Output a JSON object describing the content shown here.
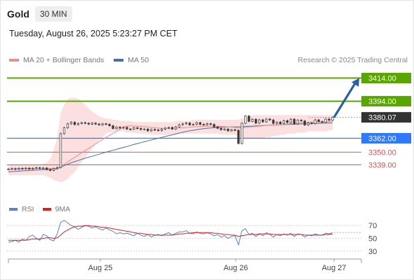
{
  "header": {
    "symbol": "Gold",
    "timeframe": "30 MIN"
  },
  "timestamp": "Tuesday, August 26, 2025 5:23:27 PM CET",
  "legend": {
    "ma20_label": "MA 20 + Bollinger Bands",
    "ma50_label": "MA 50",
    "copyright": "Research © 2025 Trading Central",
    "ma20_color": "#f08c8c",
    "ma50_color": "#4a6fa5",
    "bands_color": "#fbdada"
  },
  "rsi_legend": {
    "rsi_label": "RSI",
    "ma_label": "9MA",
    "rsi_color": "#5b7fd6",
    "ma_color": "#e02020"
  },
  "colors": {
    "resistance": "#5aa600",
    "pivot": "#2f78ff",
    "support": "#d9534f",
    "current": "#333333",
    "arrow": "#2a5fa8",
    "candle_up": "#3a3a3a",
    "candle_down": "#3a3a3a"
  },
  "chart_data": [
    {
      "type": "candlestick",
      "title": "Gold",
      "timeframe": "30 MIN",
      "x_ticks": [
        "Aug 25",
        "Aug 26",
        "Aug 27"
      ],
      "ylim": [
        3323,
        3424
      ],
      "price_levels": [
        {
          "label": "3414.00",
          "value": 3414.0,
          "kind": "resistance"
        },
        {
          "label": "3394.00",
          "value": 3394.0,
          "kind": "resistance"
        },
        {
          "label": "3380.07",
          "value": 3380.07,
          "kind": "current"
        },
        {
          "label": "3362.00",
          "value": 3362.0,
          "kind": "pivot"
        },
        {
          "label": "3350.00",
          "value": 3350.0,
          "kind": "support"
        },
        {
          "label": "3339.00",
          "value": 3339.0,
          "kind": "support"
        }
      ],
      "forecast_arrow": {
        "from": 3380,
        "to": 3414
      },
      "closes": [
        3335.5,
        3335.8,
        3335.2,
        3336.0,
        3335.6,
        3336.2,
        3335.4,
        3336.1,
        3336.5,
        3335.9,
        3336.3,
        3335.0,
        3334.2,
        3335.8,
        3336.8,
        3366.0,
        3371.0,
        3374.5,
        3375.8,
        3373.8,
        3374.8,
        3375.5,
        3375.0,
        3374.2,
        3375.1,
        3374.3,
        3373.6,
        3374.5,
        3374.1,
        3372.8,
        3370.4,
        3371.6,
        3370.8,
        3371.4,
        3370.0,
        3369.8,
        3371.0,
        3370.4,
        3369.6,
        3370.0,
        3368.4,
        3369.6,
        3369.2,
        3368.6,
        3369.8,
        3370.8,
        3371.3,
        3370.0,
        3371.8,
        3373.7,
        3374.5,
        3375.2,
        3373.6,
        3374.0,
        3375.5,
        3374.0,
        3373.7,
        3374.6,
        3374.0,
        3371.8,
        3370.6,
        3369.4,
        3370.0,
        3368.4,
        3369.4,
        3368.9,
        3357.5,
        3375.0,
        3381.2,
        3376.6,
        3378.4,
        3375.1,
        3377.9,
        3376.2,
        3378.6,
        3377.8,
        3374.8,
        3376.0,
        3374.6,
        3377.2,
        3375.6,
        3378.5,
        3374.5,
        3377.6,
        3377.0,
        3373.5,
        3375.2,
        3374.6,
        3377.9,
        3376.4,
        3375.8,
        3378.6,
        3377.6,
        3380.0
      ],
      "opens": [
        3335.2,
        3335.5,
        3335.8,
        3335.2,
        3336.0,
        3335.6,
        3336.2,
        3335.4,
        3336.1,
        3336.5,
        3335.9,
        3336.3,
        3335.0,
        3334.2,
        3335.8,
        3336.8,
        3366.0,
        3371.0,
        3374.5,
        3375.8,
        3373.8,
        3374.8,
        3375.5,
        3375.0,
        3374.2,
        3375.1,
        3374.3,
        3373.6,
        3374.5,
        3374.1,
        3372.8,
        3370.4,
        3371.6,
        3370.8,
        3371.4,
        3370.0,
        3369.8,
        3371.0,
        3370.4,
        3369.6,
        3370.0,
        3368.4,
        3369.6,
        3369.2,
        3368.6,
        3369.8,
        3370.8,
        3371.3,
        3370.0,
        3371.8,
        3373.7,
        3374.5,
        3375.2,
        3373.6,
        3374.0,
        3375.5,
        3374.0,
        3373.7,
        3374.6,
        3374.0,
        3371.8,
        3370.6,
        3369.4,
        3370.0,
        3368.4,
        3369.4,
        3368.9,
        3357.5,
        3375.0,
        3381.2,
        3376.6,
        3378.4,
        3375.1,
        3377.9,
        3376.2,
        3378.6,
        3377.8,
        3374.8,
        3376.0,
        3374.6,
        3377.2,
        3375.6,
        3378.5,
        3374.5,
        3377.6,
        3377.0,
        3373.5,
        3375.2,
        3374.6,
        3377.9,
        3376.4,
        3375.8,
        3378.6,
        3377.6
      ],
      "ma20": [
        3335.0,
        3335.2,
        3335.4,
        3335.5,
        3335.6,
        3335.7,
        3335.8,
        3335.8,
        3335.9,
        3336.0,
        3336.0,
        3336.0,
        3335.9,
        3336.0,
        3336.2,
        3337.8,
        3339.6,
        3341.6,
        3343.6,
        3345.5,
        3347.4,
        3349.4,
        3351.3,
        3353.2,
        3355.1,
        3357.1,
        3359.0,
        3360.9,
        3362.8,
        3364.5,
        3366.2,
        3368.0,
        3369.9,
        3371.8,
        3372.6,
        3372.8,
        3372.6,
        3372.4,
        3372.2,
        3372.0,
        3371.7,
        3371.4,
        3371.1,
        3370.8,
        3370.7,
        3370.6,
        3370.6,
        3370.6,
        3370.7,
        3370.9,
        3371.1,
        3371.4,
        3371.6,
        3371.8,
        3372.0,
        3372.2,
        3372.4,
        3372.5,
        3372.6,
        3372.6,
        3372.4,
        3372.2,
        3372.0,
        3371.8,
        3371.6,
        3371.4,
        3370.9,
        3371.0,
        3371.4,
        3371.7,
        3372.0,
        3372.2,
        3372.5,
        3372.7,
        3373.0,
        3373.2,
        3373.3,
        3373.5,
        3373.6,
        3373.9,
        3374.2,
        3374.5,
        3374.7,
        3375.0,
        3375.4,
        3375.6,
        3375.8,
        3376.0,
        3376.1,
        3376.2,
        3376.2,
        3376.3,
        3376.4,
        3376.6
      ],
      "ma50": [
        3333.0,
        3333.2,
        3333.4,
        3333.6,
        3333.8,
        3334.0,
        3334.1,
        3334.3,
        3334.5,
        3334.7,
        3334.9,
        3335.0,
        3335.1,
        3335.3,
        3335.5,
        3337.0,
        3338.4,
        3339.6,
        3340.8,
        3341.8,
        3342.8,
        3343.8,
        3344.8,
        3345.6,
        3346.4,
        3347.3,
        3348.2,
        3349.1,
        3350.0,
        3350.8,
        3351.6,
        3352.4,
        3353.3,
        3354.1,
        3354.9,
        3355.8,
        3356.6,
        3357.4,
        3358.2,
        3359.0,
        3359.8,
        3360.5,
        3361.3,
        3362.0,
        3362.8,
        3363.5,
        3364.3,
        3365.0,
        3365.8,
        3366.5,
        3367.2,
        3367.9,
        3368.4,
        3368.9,
        3369.4,
        3369.9,
        3370.3,
        3370.6,
        3370.9,
        3371.1,
        3371.3,
        3371.5,
        3371.6,
        3371.7,
        3371.8,
        3371.8,
        3371.9,
        3372.0,
        3372.2,
        3372.4,
        3372.5,
        3372.7,
        3372.8,
        3373.0,
        3373.1,
        3373.3,
        3373.4,
        3373.5,
        3373.6,
        3373.8,
        3373.9,
        3374.0,
        3374.1,
        3374.3,
        3374.4,
        3374.5,
        3374.6,
        3374.7,
        3374.8,
        3374.9,
        3375.0,
        3375.1,
        3375.2,
        3375.3
      ],
      "bb_upper": [
        3339,
        3339,
        3339,
        3339,
        3339,
        3339,
        3339,
        3339,
        3339,
        3339,
        3340,
        3341,
        3344,
        3352,
        3362,
        3384,
        3391,
        3396,
        3397,
        3397,
        3396,
        3394,
        3391,
        3388,
        3385,
        3383,
        3381,
        3380,
        3379,
        3379,
        3378,
        3378,
        3377,
        3377,
        3377,
        3377,
        3376,
        3376,
        3376,
        3376,
        3376,
        3376,
        3376,
        3376,
        3376,
        3376,
        3376,
        3376,
        3377,
        3377,
        3377,
        3377,
        3377,
        3378,
        3378,
        3378,
        3378,
        3378,
        3378,
        3378,
        3378,
        3378,
        3378,
        3378,
        3378,
        3378,
        3378,
        3379,
        3380,
        3381,
        3382,
        3382,
        3382,
        3382,
        3382,
        3382,
        3382,
        3382,
        3382,
        3382,
        3382,
        3382,
        3382,
        3382,
        3382,
        3382,
        3382,
        3382,
        3382,
        3382,
        3382,
        3382,
        3382,
        3382
      ],
      "bb_lower": [
        3330,
        3330,
        3330,
        3330,
        3330,
        3330,
        3330,
        3330,
        3330,
        3330,
        3330,
        3329,
        3328,
        3326,
        3325,
        3324,
        3325,
        3327,
        3330,
        3333,
        3337,
        3341,
        3345,
        3349,
        3353,
        3357,
        3360,
        3363,
        3366,
        3367,
        3368,
        3368,
        3368,
        3368,
        3367,
        3367,
        3367,
        3366,
        3366,
        3366,
        3366,
        3365,
        3365,
        3365,
        3365,
        3365,
        3365,
        3365,
        3365,
        3366,
        3366,
        3366,
        3366,
        3366,
        3366,
        3366,
        3366,
        3366,
        3366,
        3366,
        3366,
        3365,
        3365,
        3365,
        3365,
        3365,
        3363,
        3362,
        3362,
        3362,
        3362,
        3362,
        3362,
        3362,
        3363,
        3363,
        3364,
        3364,
        3365,
        3365,
        3366,
        3366,
        3366,
        3367,
        3367,
        3367,
        3368,
        3368,
        3368,
        3368,
        3368,
        3368,
        3369,
        3369
      ]
    },
    {
      "type": "line",
      "title": "RSI",
      "ylim": [
        20,
        80
      ],
      "y_ticks": [
        70,
        50,
        30
      ],
      "series": [
        {
          "name": "RSI",
          "values": [
            44,
            45,
            47,
            44,
            49,
            47,
            53,
            55,
            50,
            47,
            56,
            54,
            48,
            46,
            57,
            75,
            78,
            74,
            70,
            68,
            64,
            67,
            70,
            69,
            66,
            68,
            65,
            63,
            66,
            63,
            61,
            57,
            59,
            57,
            58,
            56,
            54,
            58,
            55,
            53,
            56,
            52,
            55,
            56,
            54,
            57,
            59,
            55,
            58,
            60,
            60,
            62,
            58,
            57,
            60,
            58,
            57,
            59,
            57,
            54,
            56,
            52,
            54,
            50,
            53,
            54,
            40,
            62,
            65,
            56,
            58,
            53,
            57,
            54,
            59,
            56,
            52,
            56,
            54,
            57,
            55,
            58,
            53,
            57,
            56,
            52,
            55,
            54,
            57,
            55,
            55,
            58,
            57,
            59
          ]
        },
        {
          "name": "9MA",
          "values": [
            47,
            47,
            47,
            47,
            47,
            47,
            48,
            49,
            49,
            49,
            50,
            51,
            51,
            50,
            51,
            55,
            60,
            63,
            66,
            68,
            69,
            69,
            70,
            70,
            69,
            69,
            68,
            67,
            67,
            66,
            65,
            64,
            63,
            62,
            61,
            60,
            59,
            58,
            58,
            57,
            56,
            56,
            55,
            55,
            55,
            55,
            55,
            55,
            56,
            57,
            57,
            58,
            58,
            59,
            59,
            59,
            59,
            59,
            59,
            58,
            58,
            57,
            56,
            56,
            55,
            55,
            53,
            54,
            55,
            56,
            56,
            56,
            57,
            57,
            57,
            57,
            56,
            56,
            56,
            56,
            56,
            56,
            56,
            56,
            56,
            55,
            55,
            55,
            55,
            55,
            55,
            56,
            56,
            57
          ]
        }
      ]
    }
  ]
}
